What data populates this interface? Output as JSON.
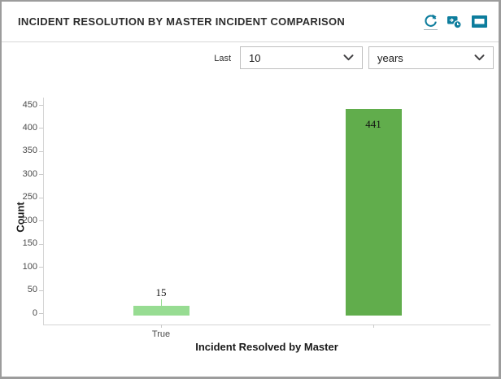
{
  "panel": {
    "title": "INCIDENT RESOLUTION BY MASTER INCIDENT COMPARISON"
  },
  "header_icons": [
    {
      "name": "refresh-icon"
    },
    {
      "name": "schedule-export-icon"
    },
    {
      "name": "window-icon"
    }
  ],
  "controls": {
    "last_label": "Last",
    "range_count": {
      "value": "10"
    },
    "range_unit": {
      "value": "years"
    }
  },
  "chart_data": {
    "type": "bar",
    "title": "",
    "categories": [
      "True",
      ""
    ],
    "values": [
      15,
      441
    ],
    "bar_colors": [
      "#97dc92",
      "#61ad4c"
    ],
    "xlabel": "Incident Resolved by Master",
    "ylabel": "Count",
    "ylim": [
      0,
      450
    ],
    "ytick_step": 50,
    "grid": false,
    "legend": false,
    "data_labels_shown": true
  },
  "colors": {
    "accent_teal": "#0d7d9d",
    "bar_light_green": "#97dc92",
    "bar_dark_green": "#61ad4c",
    "panel_border": "#9c9c9c",
    "axis_line": "#d5d5d5"
  }
}
